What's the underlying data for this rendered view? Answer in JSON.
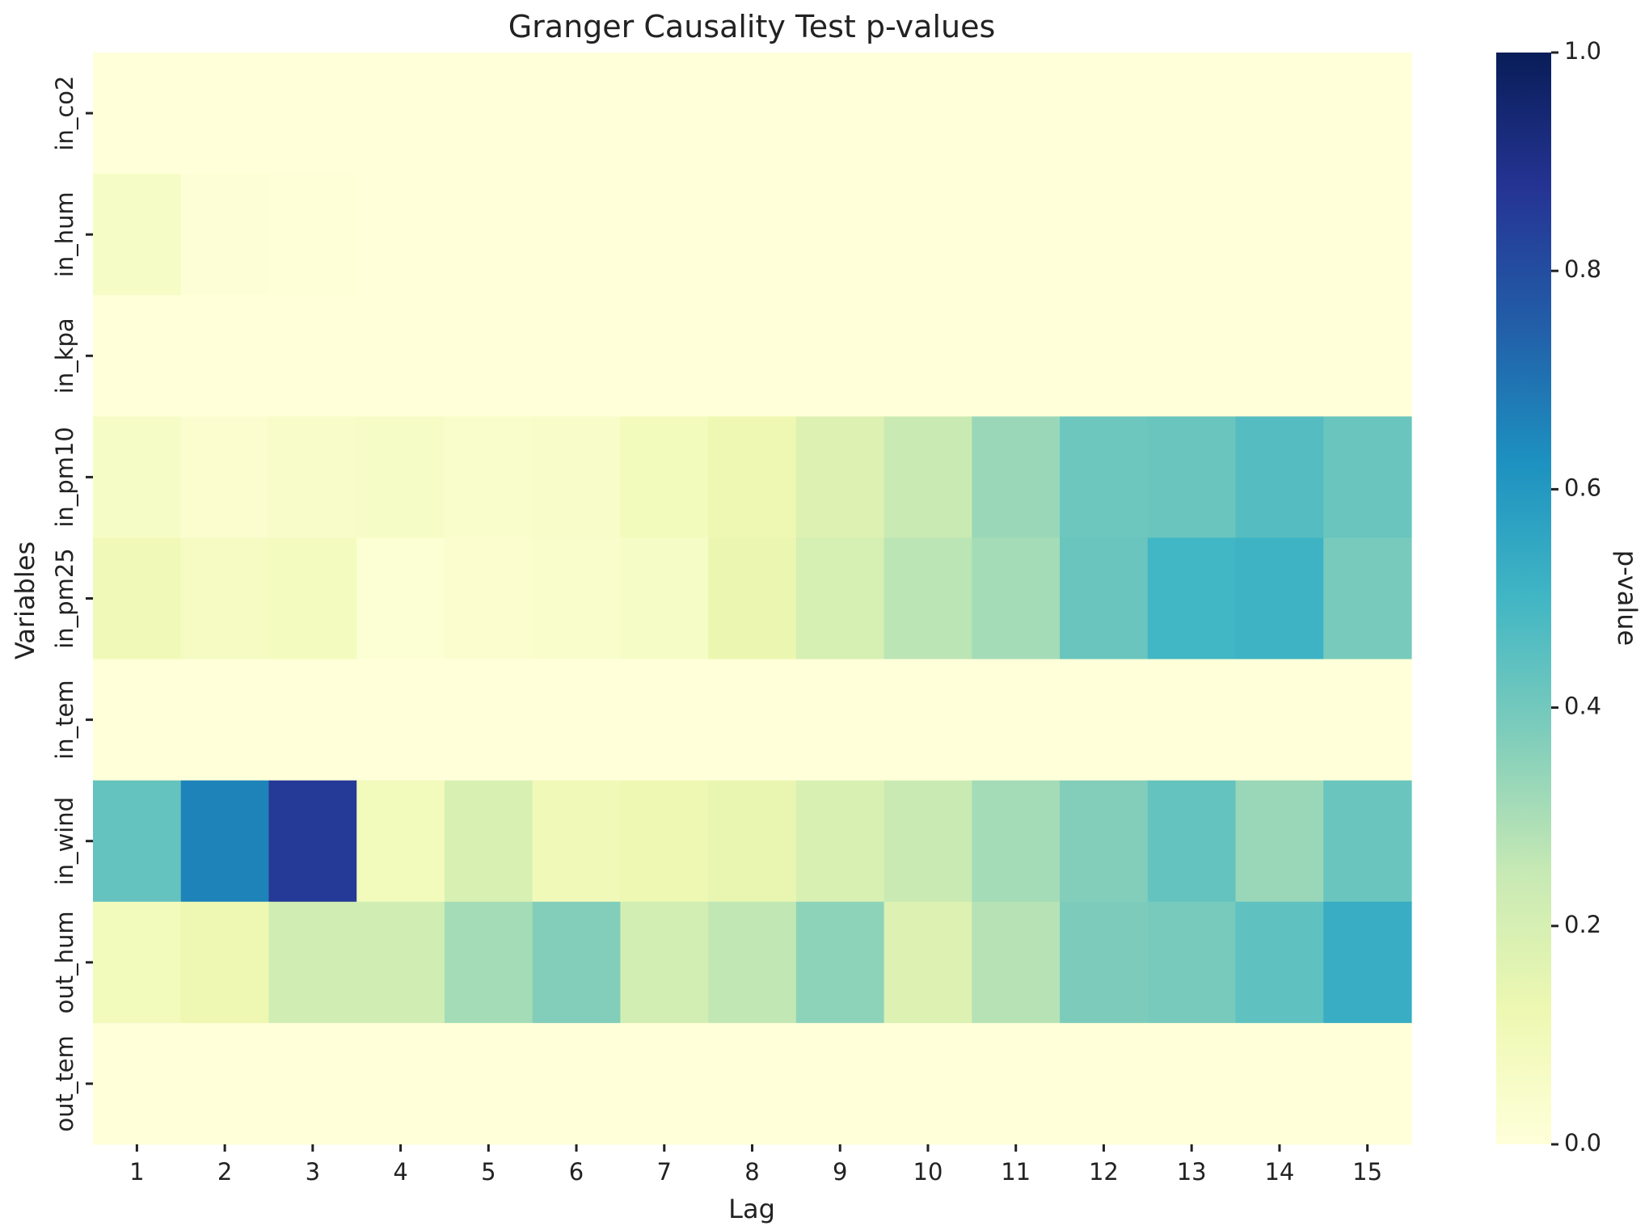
{
  "chart_data": {
    "type": "heatmap",
    "title": "Granger Causality Test p-values",
    "xlabel": "Lag",
    "ylabel": "Variables",
    "x": [
      "1",
      "2",
      "3",
      "4",
      "5",
      "6",
      "7",
      "8",
      "9",
      "10",
      "11",
      "12",
      "13",
      "14",
      "15"
    ],
    "y": [
      "in_co2",
      "in_hum",
      "in_kpa",
      "in_pm10",
      "in_pm25",
      "in_tem",
      "in_wind",
      "out_hum",
      "out_tem"
    ],
    "values": [
      [
        0.0,
        0.0,
        0.0,
        0.0,
        0.0,
        0.0,
        0.0,
        0.0,
        0.0,
        0.0,
        0.0,
        0.0,
        0.0,
        0.0,
        0.0
      ],
      [
        0.06,
        0.01,
        0.005,
        0.0,
        0.0,
        0.0,
        0.0,
        0.0,
        0.0,
        0.0,
        0.0,
        0.0,
        0.0,
        0.0,
        0.0
      ],
      [
        0.0,
        0.0,
        0.0,
        0.0,
        0.0,
        0.0,
        0.0,
        0.0,
        0.0,
        0.0,
        0.0,
        0.0,
        0.0,
        0.0,
        0.0
      ],
      [
        0.06,
        0.03,
        0.05,
        0.06,
        0.04,
        0.05,
        0.09,
        0.12,
        0.18,
        0.24,
        0.33,
        0.41,
        0.42,
        0.46,
        0.42
      ],
      [
        0.1,
        0.07,
        0.08,
        0.02,
        0.03,
        0.04,
        0.06,
        0.13,
        0.2,
        0.27,
        0.31,
        0.42,
        0.5,
        0.51,
        0.39
      ],
      [
        0.0,
        0.0,
        0.0,
        0.0,
        0.0,
        0.0,
        0.0,
        0.0,
        0.0,
        0.0,
        0.0,
        0.0,
        0.0,
        0.0,
        0.0
      ],
      [
        0.43,
        0.66,
        0.86,
        0.09,
        0.19,
        0.1,
        0.12,
        0.14,
        0.19,
        0.24,
        0.31,
        0.37,
        0.43,
        0.33,
        0.42
      ],
      [
        0.09,
        0.12,
        0.22,
        0.22,
        0.31,
        0.37,
        0.21,
        0.26,
        0.35,
        0.18,
        0.28,
        0.38,
        0.39,
        0.44,
        0.53
      ],
      [
        0.0,
        0.0,
        0.0,
        0.0,
        0.0,
        0.0,
        0.0,
        0.0,
        0.0,
        0.0,
        0.0,
        0.0,
        0.0,
        0.0,
        0.0
      ]
    ],
    "zlim": [
      0.0,
      1.0
    ],
    "colorscale": "YlGnBu",
    "colorbar": {
      "label": "p-value",
      "ticks": [
        "0.0",
        "0.2",
        "0.4",
        "0.6",
        "0.8",
        "1.0"
      ]
    }
  }
}
